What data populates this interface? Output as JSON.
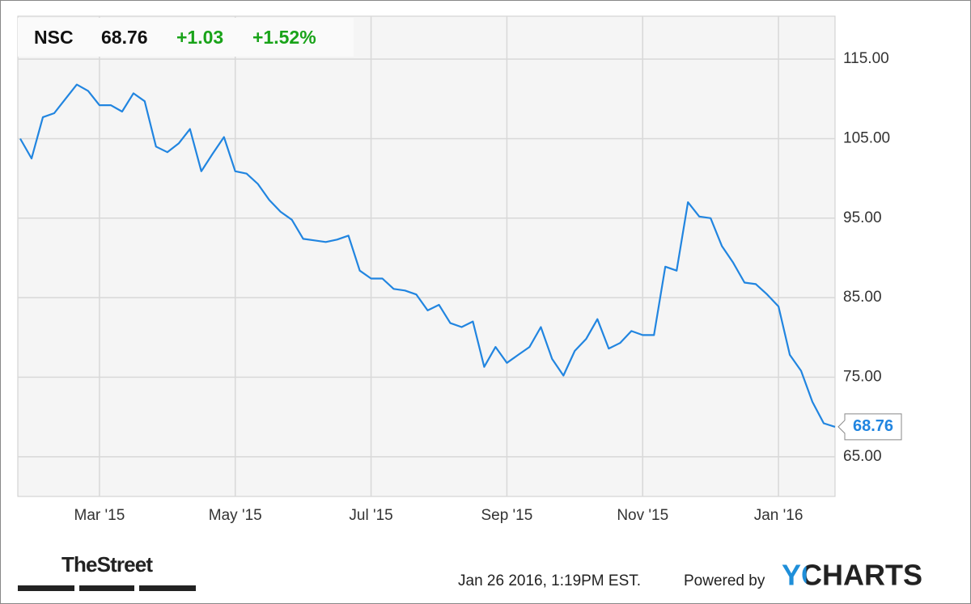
{
  "chart_data": {
    "type": "line",
    "header": {
      "ticker": "NSC",
      "price": "68.76",
      "change": "+1.03",
      "change_pct": "+1.52%"
    },
    "categories": [
      null,
      null,
      null,
      null,
      null,
      null,
      null,
      "Mar '15",
      null,
      null,
      null,
      null,
      null,
      null,
      null,
      null,
      null,
      null,
      null,
      "May '15",
      null,
      null,
      null,
      null,
      null,
      null,
      null,
      null,
      null,
      null,
      null,
      "Jul '15",
      null,
      null,
      null,
      null,
      null,
      null,
      null,
      null,
      null,
      null,
      null,
      "Sep '15",
      null,
      null,
      null,
      null,
      null,
      null,
      null,
      null,
      null,
      null,
      null,
      "Nov '15",
      null,
      null,
      null,
      null,
      null,
      null,
      null,
      null,
      null,
      null,
      null,
      "Jan '16",
      null,
      null,
      null,
      null,
      null
    ],
    "series": [
      {
        "name": "NSC",
        "color": "#2185e0",
        "values": [
          105.0,
          102.5,
          107.7,
          108.2,
          110.0,
          111.8,
          111.0,
          109.2,
          109.2,
          108.4,
          110.7,
          109.7,
          104.0,
          103.3,
          104.4,
          106.2,
          100.9,
          103.1,
          105.2,
          100.9,
          100.6,
          99.3,
          97.3,
          95.8,
          94.8,
          92.4,
          92.2,
          92.0,
          92.3,
          92.8,
          88.4,
          87.4,
          87.4,
          86.1,
          85.9,
          85.4,
          83.4,
          84.1,
          81.8,
          81.3,
          82.0,
          76.3,
          78.8,
          76.8,
          77.8,
          78.8,
          81.3,
          77.3,
          75.2,
          78.3,
          79.8,
          82.3,
          78.6,
          79.3,
          80.8,
          80.3,
          80.3,
          88.9,
          88.4,
          97.0,
          95.2,
          95.0,
          91.5,
          89.4,
          86.9,
          86.7,
          85.4,
          83.9,
          77.8,
          75.8,
          71.9,
          69.2,
          68.76
        ]
      }
    ],
    "ylim": [
      60,
      120.4
    ],
    "yticks": [
      {
        "value": 65,
        "label": "65.00"
      },
      {
        "value": 75,
        "label": "75.00"
      },
      {
        "value": 85,
        "label": "85.00"
      },
      {
        "value": 95,
        "label": "95.00"
      },
      {
        "value": 105,
        "label": "105.00"
      },
      {
        "value": 115,
        "label": "115.00"
      }
    ],
    "grid": true,
    "timestamp": "Jan 26 2016, 1:19PM EST.",
    "powered_by": "Powered by",
    "brand": "YCHARTS",
    "source_logo": "TheStreet"
  }
}
